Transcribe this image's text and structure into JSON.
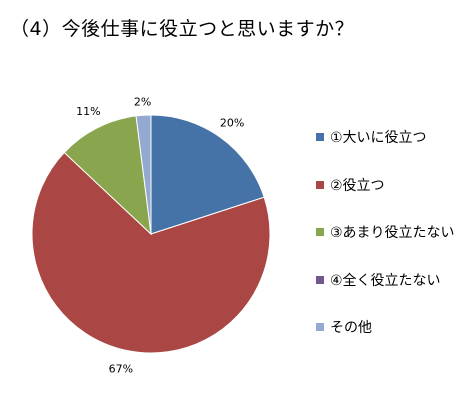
{
  "title": "（4）今後仕事に役立つと思いますか？",
  "chart_data": {
    "type": "pie",
    "title": "（4）今後仕事に役立つと思いますか？",
    "categories": [
      "①大いに役立つ",
      "②役立つ",
      "③あまり役立たない",
      "④全く役立たない",
      "その他"
    ],
    "values": [
      20,
      67,
      11,
      0,
      2
    ],
    "labels": [
      "20%",
      "67%",
      "11%",
      "",
      "2%"
    ],
    "colors": [
      "#4572A7",
      "#AA4643",
      "#89A54E",
      "#71588F",
      "#93A9CF"
    ],
    "legend_position": "right",
    "start_angle": "12 o'clock, clockwise"
  }
}
